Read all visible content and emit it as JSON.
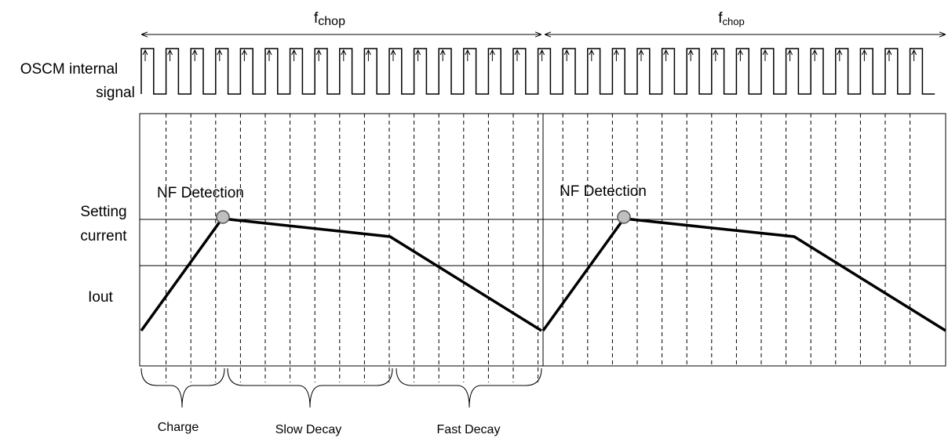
{
  "chop_labels": [
    {
      "main": "f",
      "sub": "chop"
    },
    {
      "main": "f",
      "sub": "chop"
    }
  ],
  "signal_label": [
    "OSCM internal",
    "signal"
  ],
  "setting_label": [
    "Setting",
    "current"
  ],
  "iout_label": "Iout",
  "detections": [
    "NF Detection",
    "NF Detection"
  ],
  "phases": [
    "Charge",
    "Slow Decay",
    "Fast Decay"
  ]
}
